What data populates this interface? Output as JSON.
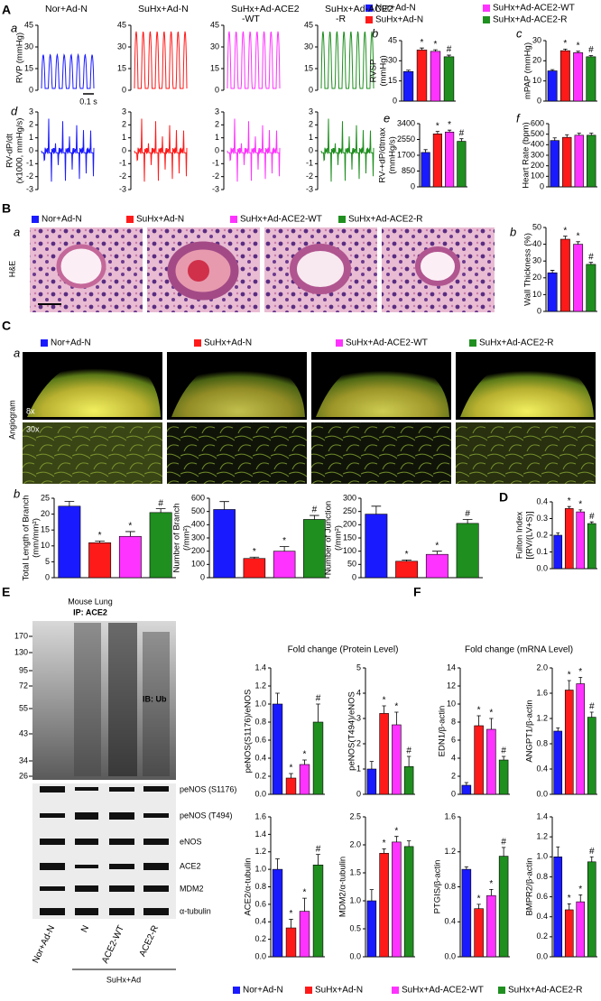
{
  "groups": [
    {
      "name": "Nor+Ad-N",
      "color": "#1a1aff"
    },
    {
      "name": "SuHx+Ad-N",
      "color": "#ff1a1a"
    },
    {
      "name": "SuHx+Ad-ACE2-WT",
      "color": "#ff33ff"
    },
    {
      "name": "SuHx+Ad-ACE2-R",
      "color": "#1f8f1f"
    }
  ],
  "panel_labels": [
    "A",
    "a",
    "b",
    "c",
    "d",
    "e",
    "f",
    "B",
    "a",
    "b",
    "C",
    "a",
    "b",
    "D",
    "E",
    "F"
  ],
  "scale_bar": "0.1 s",
  "histology_stain": "H&E",
  "angiogram": {
    "label": "Angiogram",
    "magnifications": [
      "8x",
      "30x"
    ]
  },
  "blot": {
    "title": "Mouse Lung",
    "ip": "IP: ACE2",
    "ib": "IB: Ub",
    "markers": [
      170,
      130,
      95,
      72,
      55,
      43,
      34,
      26
    ],
    "bands": [
      "peNOS (S1176)",
      "peNOS (T494)",
      "eNOS",
      "ACE2",
      "MDM2",
      "α-tubulin"
    ],
    "lanes": [
      "Nor+Ad-N",
      "N",
      "ACE2-WT",
      "ACE2-R"
    ],
    "lane_group": "SuHx+Ad"
  },
  "protein_title": "Fold change (Protein Level)",
  "mrna_title": "Fold change (mRNA Level)",
  "chart_data": [
    {
      "type": "trace",
      "title": [
        "Nor+Ad-N"
      ],
      "color": "#1a1aff",
      "ylabel": [
        "RVP (mmHg)"
      ],
      "ylim": [
        0,
        45
      ],
      "yticks": [
        0,
        15,
        30,
        45
      ]
    },
    {
      "type": "trace",
      "title": [
        "SuHx+Ad-N"
      ],
      "color": "#ff1a1a",
      "ylim": [
        0,
        45
      ],
      "yticks": [
        0,
        15,
        30,
        45
      ]
    },
    {
      "type": "trace",
      "title": [
        "SuHx+Ad-ACE2",
        "-WT"
      ],
      "color": "#ff33ff",
      "ylim": [
        0,
        45
      ],
      "yticks": [
        0,
        15,
        30,
        45
      ]
    },
    {
      "type": "trace",
      "title": [
        "SuHx+Ad-ACE2",
        "-R"
      ],
      "color": "#1f8f1f",
      "ylim": [
        0,
        45
      ],
      "yticks": [
        0,
        15,
        30,
        45
      ]
    },
    {
      "type": "trace",
      "color": "#1a1aff",
      "ylabel": [
        "RV-dP/dt",
        "(x1000, mmHg/s)"
      ],
      "ylim": [
        -3,
        3
      ],
      "yticks": [
        -3,
        -2,
        -1,
        0,
        1,
        2,
        3
      ]
    },
    {
      "type": "trace",
      "color": "#ff1a1a",
      "ylim": [
        -3,
        3
      ],
      "yticks": [
        -3,
        -2,
        -1,
        0,
        1,
        2,
        3
      ]
    },
    {
      "type": "trace",
      "color": "#ff33ff",
      "ylim": [
        -3,
        3
      ],
      "yticks": [
        -3,
        -2,
        -1,
        0,
        1,
        2,
        3
      ]
    },
    {
      "type": "trace",
      "color": "#1f8f1f",
      "ylim": [
        -3,
        3
      ],
      "yticks": [
        -3,
        -2,
        -1,
        0,
        1,
        2,
        3
      ]
    },
    {
      "type": "bar",
      "ylabel": [
        "RVSP",
        "(mmHg)"
      ],
      "ylim": [
        0,
        45
      ],
      "yticks": [
        0,
        15,
        30,
        45
      ],
      "values": [
        22,
        38,
        37,
        33
      ],
      "errors": [
        1,
        1.5,
        1.2,
        1.2
      ],
      "sig": [
        null,
        "*",
        "*",
        "#"
      ]
    },
    {
      "type": "bar",
      "ylabel": [
        "mPAP (mmHg)"
      ],
      "ylim": [
        0,
        30
      ],
      "yticks": [
        0,
        10,
        20,
        30
      ],
      "values": [
        15,
        25,
        24,
        22
      ],
      "errors": [
        0.6,
        0.8,
        0.7,
        0.6
      ],
      "sig": [
        null,
        "*",
        "*",
        "#"
      ]
    },
    {
      "type": "bar",
      "ylabel": [
        "RV-+dP/dtmax",
        "(mmHg/s)"
      ],
      "ylim": [
        0,
        3400
      ],
      "yticks": [
        0,
        850,
        1700,
        2550,
        3400
      ],
      "values": [
        1850,
        2850,
        2950,
        2450
      ],
      "errors": [
        150,
        130,
        100,
        140
      ],
      "sig": [
        null,
        "*",
        "*",
        "#"
      ]
    },
    {
      "type": "bar",
      "ylabel": [
        "Heart Rate (bpm)"
      ],
      "ylim": [
        0,
        600
      ],
      "yticks": [
        0,
        100,
        200,
        300,
        400,
        500,
        600
      ],
      "values": [
        440,
        470,
        490,
        490
      ],
      "errors": [
        25,
        25,
        20,
        20
      ]
    },
    {
      "type": "bar",
      "ylabel": [
        "Wall Thickness (%)"
      ],
      "ylim": [
        0,
        50
      ],
      "yticks": [
        0,
        10,
        20,
        30,
        40,
        50
      ],
      "values": [
        23,
        43,
        40,
        28
      ],
      "errors": [
        1.5,
        1.8,
        1.5,
        1.2
      ],
      "sig": [
        null,
        "*",
        "*",
        "#"
      ]
    },
    {
      "type": "bar",
      "ylabel": [
        "Total Length of Branch",
        "(mm/mm²)"
      ],
      "ylim": [
        0,
        25
      ],
      "yticks": [
        0,
        5,
        10,
        15,
        20,
        25
      ],
      "values": [
        22.5,
        11,
        13,
        20.5
      ],
      "errors": [
        1.5,
        0.5,
        1.5,
        1.2
      ],
      "sig": [
        null,
        "*",
        "*",
        "#"
      ]
    },
    {
      "type": "bar",
      "ylabel": [
        "Number of Branch",
        "(/mm²)"
      ],
      "ylim": [
        0,
        600
      ],
      "yticks": [
        0,
        100,
        200,
        300,
        400,
        500,
        600
      ],
      "values": [
        515,
        145,
        200,
        440
      ],
      "errors": [
        60,
        10,
        35,
        30
      ],
      "sig": [
        null,
        "*",
        "*",
        "#"
      ]
    },
    {
      "type": "bar",
      "ylabel": [
        "Number of Junction",
        "(/mm²)"
      ],
      "ylim": [
        0,
        300
      ],
      "yticks": [
        0,
        50,
        100,
        150,
        200,
        250,
        300
      ],
      "values": [
        240,
        62,
        88,
        205
      ],
      "errors": [
        30,
        5,
        12,
        15
      ],
      "sig": [
        null,
        "*",
        "*",
        "#"
      ]
    },
    {
      "type": "bar",
      "ylabel": [
        "Fulton Index",
        "[(RV/(LV+S)]"
      ],
      "ylim": [
        0,
        0.4
      ],
      "yticks": [
        {
          "value": 0,
          "label": "0.0"
        },
        0.1,
        0.2,
        0.3,
        0.4
      ],
      "values": [
        0.2,
        0.36,
        0.34,
        0.27
      ],
      "errors": [
        0.015,
        0.012,
        0.012,
        0.01
      ],
      "sig": [
        null,
        "*",
        "*",
        "#"
      ]
    },
    {
      "type": "bar",
      "ylabel": [
        "peNOS(S1176)/eNOS"
      ],
      "ylim": [
        0,
        1.4
      ],
      "yticks": [
        {
          "value": 0,
          "label": "0.0"
        },
        0.2,
        0.4,
        0.6,
        0.8,
        {
          "value": 1,
          "label": "1.0"
        },
        1.2,
        1.4
      ],
      "values": [
        1.0,
        0.18,
        0.33,
        0.8
      ],
      "errors": [
        0.12,
        0.05,
        0.05,
        0.2
      ],
      "sig": [
        null,
        "*",
        "*",
        "#"
      ]
    },
    {
      "type": "bar",
      "ylabel": [
        "peNOS(T494)/eNOS"
      ],
      "ylim": [
        0,
        5
      ],
      "yticks": [
        0,
        1,
        2,
        3,
        4,
        5
      ],
      "values": [
        1.0,
        3.2,
        2.75,
        1.1
      ],
      "errors": [
        0.3,
        0.3,
        0.5,
        0.4
      ],
      "sig": [
        null,
        "*",
        "*",
        "#"
      ]
    },
    {
      "type": "bar",
      "ylabel": [
        "ACE2/α-tubulin"
      ],
      "ylim": [
        0,
        1.6
      ],
      "yticks": [
        {
          "value": 0,
          "label": "0.0"
        },
        0.2,
        0.4,
        0.6,
        0.8,
        {
          "value": 1,
          "label": "1.0"
        },
        1.2,
        1.4,
        1.6
      ],
      "values": [
        1.0,
        0.33,
        0.52,
        1.05
      ],
      "errors": [
        0.12,
        0.1,
        0.15,
        0.12
      ],
      "sig": [
        null,
        "*",
        "*",
        "#"
      ]
    },
    {
      "type": "bar",
      "ylabel": [
        "MDM2/α-tubulin"
      ],
      "ylim": [
        0,
        2.5
      ],
      "yticks": [
        {
          "value": 0,
          "label": "0.0"
        },
        0.5,
        {
          "value": 1,
          "label": "1.0"
        },
        1.5,
        {
          "value": 2,
          "label": "2.0"
        },
        2.5
      ],
      "values": [
        1.0,
        1.85,
        2.05,
        1.97
      ],
      "errors": [
        0.2,
        0.08,
        0.1,
        0.1
      ],
      "sig": [
        null,
        "*",
        "*",
        null
      ]
    },
    {
      "type": "bar",
      "ylabel": [
        "EDN1/β-actin"
      ],
      "ylim": [
        0,
        14
      ],
      "yticks": [
        0,
        2,
        4,
        6,
        8,
        10,
        12,
        14
      ],
      "values": [
        1.0,
        7.6,
        7.2,
        3.8
      ],
      "errors": [
        0.3,
        1.1,
        1.2,
        0.4
      ],
      "sig": [
        null,
        "*",
        "*",
        "#"
      ]
    },
    {
      "type": "bar",
      "ylabel": [
        "ANGPT1/β-actin"
      ],
      "ylim": [
        0,
        2
      ],
      "yticks": [
        {
          "value": 0,
          "label": "0.0"
        },
        0.4,
        0.8,
        1.2,
        1.6,
        {
          "value": 2,
          "label": "2.0"
        }
      ],
      "values": [
        1.0,
        1.65,
        1.75,
        1.22
      ],
      "errors": [
        0.05,
        0.15,
        0.1,
        0.08
      ],
      "sig": [
        null,
        "*",
        "*",
        "#"
      ]
    },
    {
      "type": "bar",
      "ylabel": [
        "PTGIS/β-actin"
      ],
      "ylim": [
        0,
        1.6
      ],
      "yticks": [
        {
          "value": 0,
          "label": "0.0"
        },
        0.4,
        0.8,
        1.2,
        1.6
      ],
      "values": [
        1.0,
        0.55,
        0.7,
        1.15
      ],
      "errors": [
        0.03,
        0.05,
        0.07,
        0.1
      ],
      "sig": [
        null,
        "*",
        "*",
        "#"
      ]
    },
    {
      "type": "bar",
      "ylabel": [
        "BMPR2/β-actin"
      ],
      "ylim": [
        0,
        1.4
      ],
      "yticks": [
        {
          "value": 0,
          "label": "0.0"
        },
        0.2,
        0.4,
        0.6,
        0.8,
        {
          "value": 1,
          "label": "1.0"
        },
        1.2,
        1.4
      ],
      "values": [
        1.0,
        0.47,
        0.55,
        0.95
      ],
      "errors": [
        0.1,
        0.06,
        0.07,
        0.05
      ],
      "sig": [
        null,
        "*",
        "*",
        "#"
      ]
    }
  ]
}
